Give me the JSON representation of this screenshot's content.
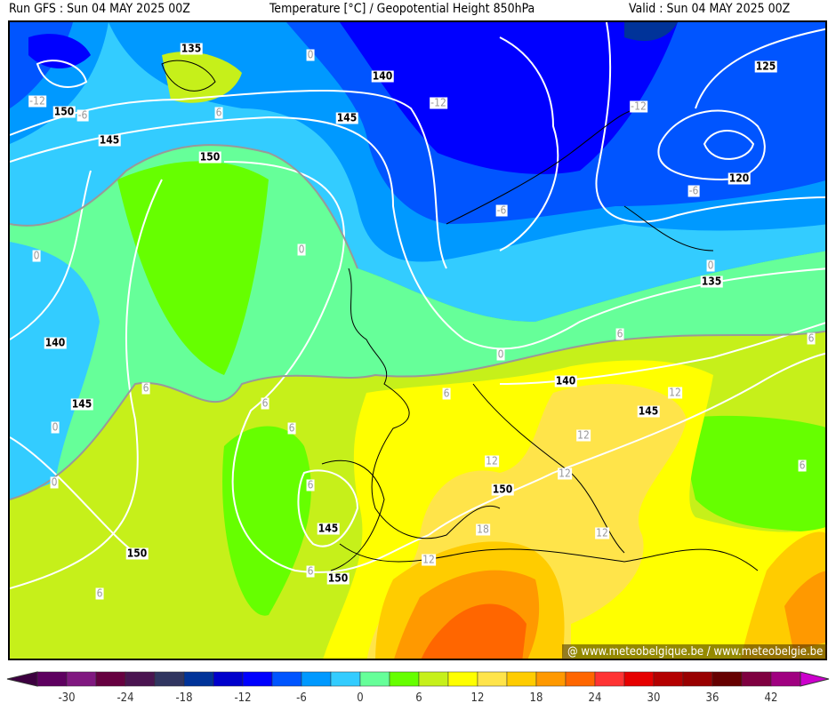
{
  "header": {
    "run": "Run GFS : Sun 04 MAY 2025 00Z",
    "title": "Temperature [°C] / Geopotential Height 850hPa",
    "valid": "Valid : Sun 04 MAY 2025 00Z"
  },
  "watermark": "@ www.meteobelgique.be / www.meteobelgie.be",
  "height_labels": [
    "135",
    "140",
    "150",
    "145",
    "145",
    "150",
    "125",
    "120",
    "135",
    "140",
    "145",
    "140",
    "145",
    "150",
    "145",
    "150",
    "150"
  ],
  "temp_labels": [
    "0",
    "-12",
    "-6",
    "6",
    "-12",
    "-12",
    "-6",
    "-6",
    "0",
    "0",
    "0",
    "6",
    "6",
    "0",
    "6",
    "12",
    "6",
    "6",
    "0",
    "6",
    "12",
    "12",
    "6",
    "0",
    "6",
    "12",
    "12",
    "18",
    "12",
    "6",
    "6"
  ],
  "colorbar": {
    "ticks": [
      "-30",
      "-24",
      "-18",
      "-12",
      "-6",
      "0",
      "6",
      "12",
      "18",
      "24",
      "30",
      "36",
      "42"
    ],
    "below_color": "#3d0040",
    "above_color": "#cc00cc",
    "colors": [
      "#5e0060",
      "#801880",
      "#660040",
      "#4a1450",
      "#303560",
      "#003399",
      "#0000cc",
      "#0000ff",
      "#0055ff",
      "#0099ff",
      "#33ccff",
      "#66ff99",
      "#66ff00",
      "#c6f01a",
      "#ffff00",
      "#ffe44a",
      "#ffcc00",
      "#ff9900",
      "#ff6600",
      "#ff3333",
      "#e60000",
      "#b40000",
      "#990000",
      "#660000",
      "#7f0040",
      "#a00080"
    ]
  }
}
